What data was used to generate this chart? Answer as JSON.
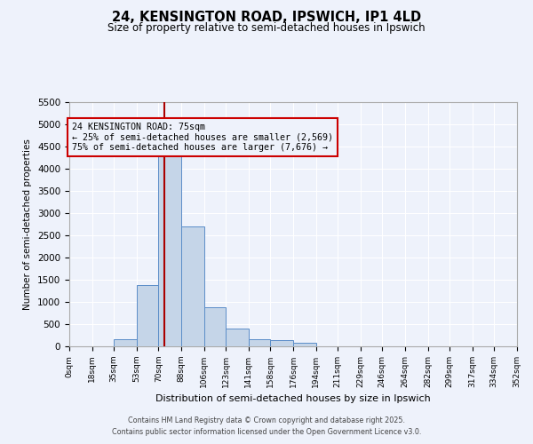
{
  "title": "24, KENSINGTON ROAD, IPSWICH, IP1 4LD",
  "subtitle": "Size of property relative to semi-detached houses in Ipswich",
  "xlabel": "Distribution of semi-detached houses by size in Ipswich",
  "ylabel": "Number of semi-detached properties",
  "bin_labels": [
    "0sqm",
    "18sqm",
    "35sqm",
    "53sqm",
    "70sqm",
    "88sqm",
    "106sqm",
    "123sqm",
    "141sqm",
    "158sqm",
    "176sqm",
    "194sqm",
    "211sqm",
    "229sqm",
    "246sqm",
    "264sqm",
    "282sqm",
    "299sqm",
    "317sqm",
    "334sqm",
    "352sqm"
  ],
  "bin_edges": [
    0,
    18,
    35,
    53,
    70,
    88,
    106,
    123,
    141,
    158,
    176,
    194,
    211,
    229,
    246,
    264,
    282,
    299,
    317,
    334,
    352
  ],
  "bar_heights": [
    3,
    8,
    165,
    1380,
    4330,
    2700,
    880,
    395,
    170,
    135,
    75,
    0,
    0,
    0,
    0,
    0,
    0,
    0,
    0,
    0
  ],
  "bar_color": "#c5d5e8",
  "bar_edge_color": "#5b8dc8",
  "property_value": 75,
  "vline_color": "#aa0000",
  "annotation_text_line1": "24 KENSINGTON ROAD: 75sqm",
  "annotation_text_line2": "← 25% of semi-detached houses are smaller (2,569)",
  "annotation_text_line3": "75% of semi-detached houses are larger (7,676) →",
  "annotation_box_color": "#cc0000",
  "ylim": [
    0,
    5500
  ],
  "yticks": [
    0,
    500,
    1000,
    1500,
    2000,
    2500,
    3000,
    3500,
    4000,
    4500,
    5000,
    5500
  ],
  "bg_color": "#eef2fb",
  "grid_color": "#ffffff",
  "footer_line1": "Contains HM Land Registry data © Crown copyright and database right 2025.",
  "footer_line2": "Contains public sector information licensed under the Open Government Licence v3.0."
}
